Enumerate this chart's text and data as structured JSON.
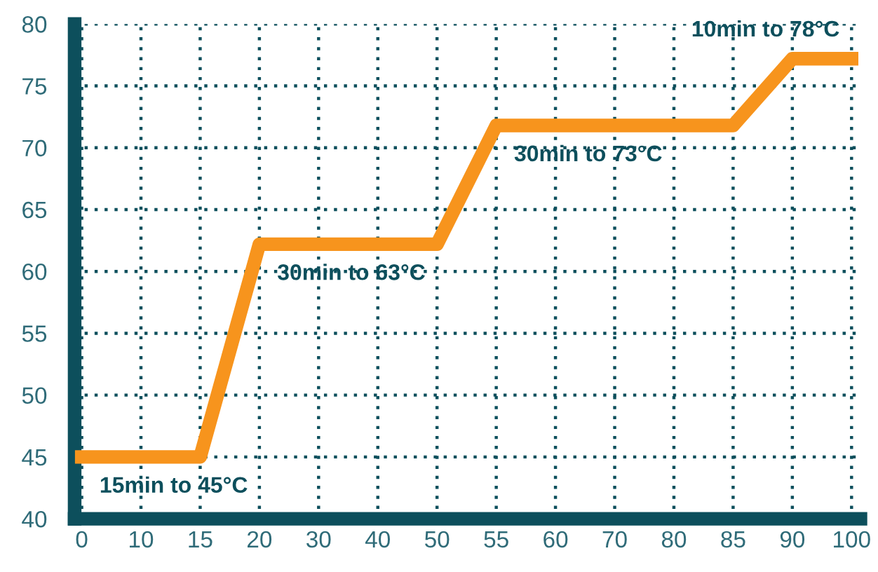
{
  "chart_data": {
    "type": "line",
    "categories": [
      "0",
      "10",
      "15",
      "20",
      "30",
      "40",
      "50",
      "55",
      "60",
      "70",
      "80",
      "85",
      "90",
      "100"
    ],
    "series": [
      {
        "color": "#f7941d",
        "values": [
          45,
          45,
          45,
          62.2,
          62.2,
          62.2,
          62.2,
          71.8,
          71.8,
          71.8,
          71.8,
          71.8,
          77.2,
          77.2
        ]
      }
    ],
    "ylim": [
      40,
      80
    ],
    "yticks": [
      40,
      45,
      50,
      55,
      60,
      65,
      70,
      75,
      80
    ],
    "grid": true,
    "line_style": "solid",
    "marker": "none",
    "legend": false,
    "annotations": [
      {
        "text": "15min to 45°C",
        "x": "0",
        "y": 45
      },
      {
        "text": "30min to 63°C",
        "x": "20",
        "y": 62.2
      },
      {
        "text": "30min to 73°C",
        "x": "55",
        "y": 71.8
      },
      {
        "text": "10min to 78°C",
        "x": "90",
        "y": 77.2
      }
    ]
  }
}
